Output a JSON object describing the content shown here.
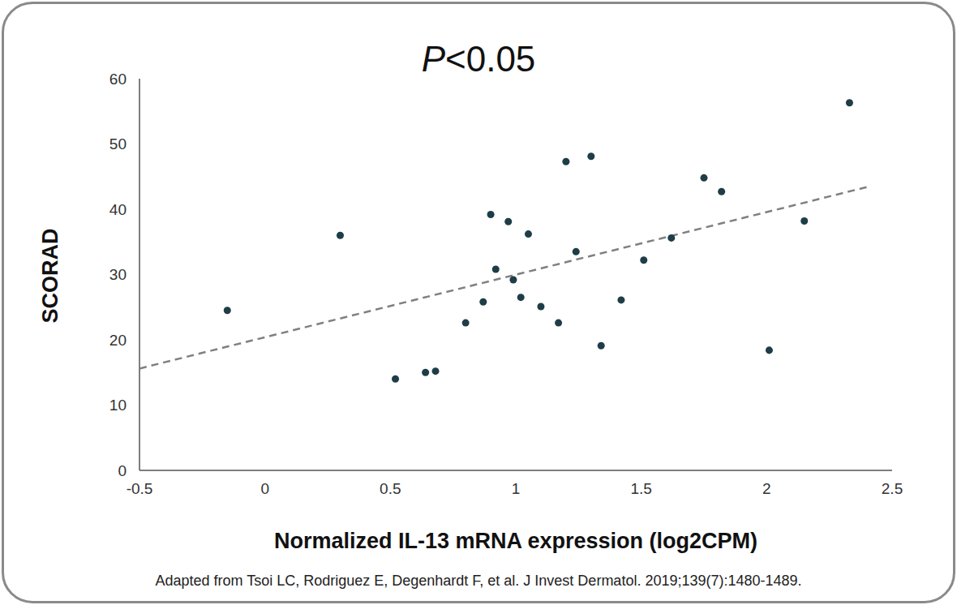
{
  "chart_data": {
    "type": "scatter",
    "title": "P<0.05",
    "x_label": "Normalized IL-13 mRNA expression (log2CPM)",
    "y_label": "SCORAD",
    "source": "Adapted from Tsoi LC, Rodriguez E, Degenhardt F, et al. J Invest Dermatol. 2019;139(7):1480-1489.",
    "x": [
      -0.15,
      0.3,
      0.52,
      0.64,
      0.68,
      0.8,
      0.87,
      0.9,
      0.92,
      0.97,
      0.99,
      1.02,
      1.05,
      1.1,
      1.17,
      1.2,
      1.24,
      1.3,
      1.34,
      1.42,
      1.51,
      1.62,
      1.75,
      1.82,
      2.01,
      2.15,
      2.33
    ],
    "values": [
      24.5,
      36,
      14,
      15,
      15.2,
      22.6,
      25.8,
      39.2,
      30.8,
      38.1,
      29.2,
      26.5,
      36.2,
      25.1,
      22.6,
      47.3,
      33.5,
      48.1,
      19.1,
      26.1,
      32.2,
      35.6,
      44.8,
      42.7,
      18.4,
      38.2,
      56.3
    ],
    "color": "#1e3d47",
    "marker": "circle",
    "trend_line": {
      "x": [
        -0.5,
        2.4
      ],
      "values": [
        15.6,
        43.4
      ],
      "color": "#808080",
      "line_style": "dashed"
    },
    "xlim": [
      -0.5,
      2.5
    ],
    "xticks": [
      -0.5,
      0,
      0.5,
      1,
      1.5,
      2,
      2.5
    ],
    "ylim": [
      0,
      60
    ],
    "yticks": [
      0,
      10,
      20,
      30,
      40,
      50,
      60
    ],
    "grid": false
  }
}
